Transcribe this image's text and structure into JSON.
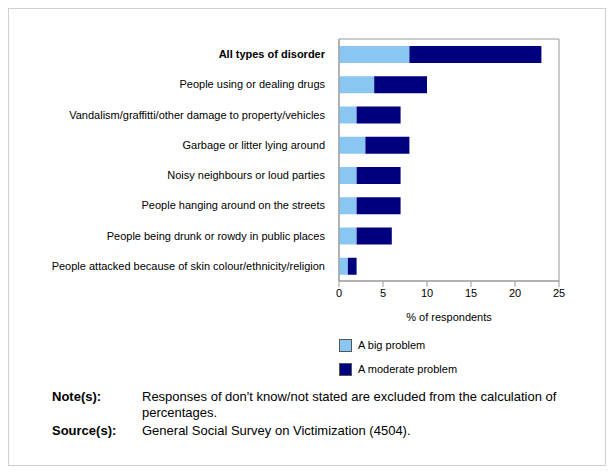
{
  "chart_data": {
    "type": "bar",
    "orientation": "horizontal",
    "stacked": true,
    "grid": false,
    "xlabel": "% of respondents",
    "categories": [
      "All types of disorder",
      "People using or dealing drugs",
      "Vandalism/graffitti/other damage to property/vehicles",
      "Garbage or litter lying around",
      "Noisy neighbours or loud parties",
      "People hanging around on the streets",
      "People being drunk or rowdy in public places",
      "People attacked because of skin colour/ethnicity/religion"
    ],
    "series": [
      {
        "name": "A big problem",
        "color": "#8ac6f2",
        "values": [
          8,
          4,
          2,
          3,
          2,
          2,
          2,
          1
        ]
      },
      {
        "name": "A moderate problem",
        "color": "#00007f",
        "values": [
          15,
          6,
          5,
          5,
          5,
          5,
          4,
          1
        ]
      }
    ],
    "xlim": [
      0,
      25
    ],
    "xticks": [
      0,
      5,
      10,
      15,
      20,
      25
    ],
    "legend": "bottom"
  },
  "notes": [
    {
      "label": "Note(s):",
      "text": "Responses of don't know/not stated are excluded from the calculation of percentages."
    },
    {
      "label": "Source(s):",
      "text": "General Social Survey on Victimization (4504)."
    }
  ]
}
